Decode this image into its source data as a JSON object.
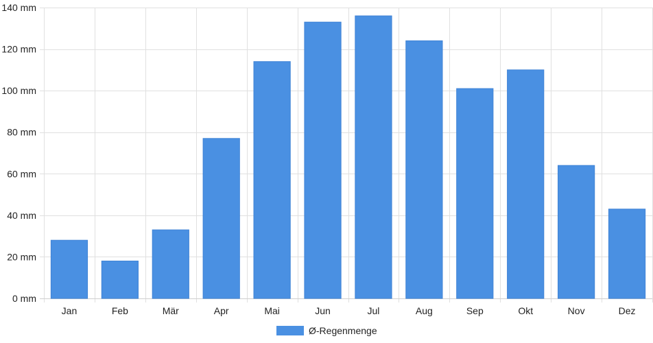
{
  "chart_data": {
    "type": "bar",
    "categories": [
      "Jan",
      "Feb",
      "Mär",
      "Apr",
      "Mai",
      "Jun",
      "Jul",
      "Aug",
      "Sep",
      "Okt",
      "Nov",
      "Dez"
    ],
    "series": [
      {
        "name": "Ø-Regenmenge",
        "values": [
          28,
          18,
          33,
          77,
          114,
          133,
          136,
          124,
          101,
          110,
          64,
          43
        ]
      }
    ],
    "y_unit": "mm",
    "ylim": [
      0,
      140
    ],
    "y_ticks": [
      0,
      20,
      40,
      60,
      80,
      100,
      120,
      140
    ],
    "y_tick_labels": [
      "0 mm",
      "20 mm",
      "40 mm",
      "60 mm",
      "80 mm",
      "100 mm",
      "120 mm",
      "140 mm"
    ],
    "grid": true,
    "legend_position": "bottom",
    "colors": {
      "bar": "#4a90e2",
      "grid": "#e0e0e0"
    }
  }
}
